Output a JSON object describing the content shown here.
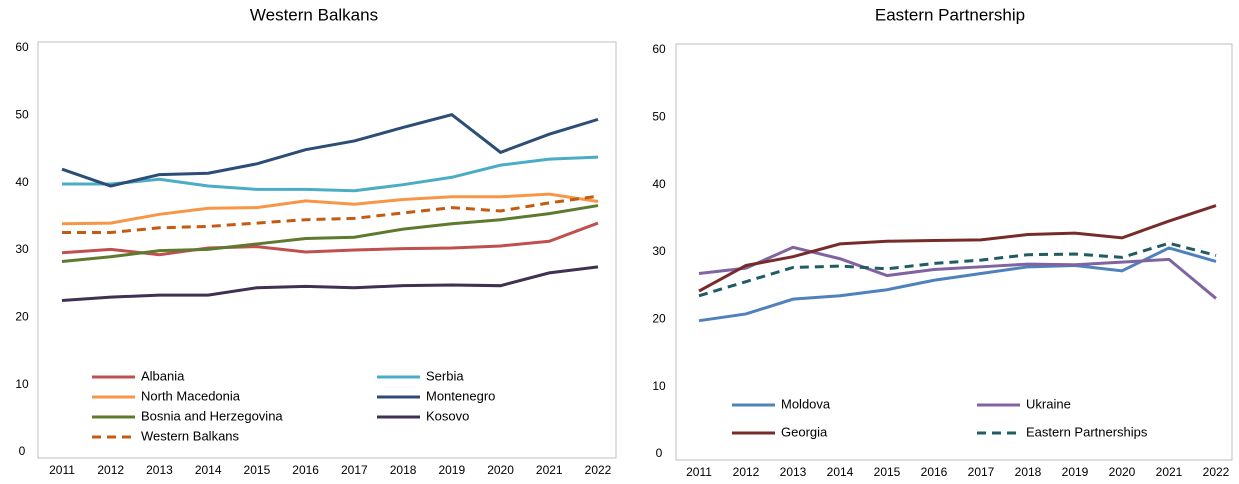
{
  "chart_data": [
    {
      "type": "line",
      "title": "Western Balkans",
      "x": [
        "2011",
        "2012",
        "2013",
        "2014",
        "2015",
        "2016",
        "2017",
        "2018",
        "2019",
        "2020",
        "2021",
        "2022"
      ],
      "ylim": [
        0,
        60
      ],
      "yticks": [
        0,
        10,
        20,
        30,
        40,
        50,
        60
      ],
      "series": [
        {
          "name": "Albania",
          "color": "#c0504d",
          "values": [
            29.6,
            30.1,
            29.3,
            30.3,
            30.5,
            29.7,
            30.0,
            30.2,
            30.3,
            30.6,
            31.3,
            34.0
          ]
        },
        {
          "name": "Serbia",
          "color": "#4bacc6",
          "values": [
            39.8,
            39.8,
            40.5,
            39.5,
            39.0,
            39.0,
            38.8,
            39.7,
            40.8,
            42.6,
            43.5,
            43.8
          ]
        },
        {
          "name": "North Macedonia",
          "color": "#f79646",
          "values": [
            33.9,
            34.0,
            35.3,
            36.2,
            36.3,
            37.3,
            36.8,
            37.5,
            37.9,
            37.9,
            38.3,
            37.2
          ]
        },
        {
          "name": "Montenegro",
          "color": "#2c4d75",
          "values": [
            42.0,
            39.5,
            41.2,
            41.4,
            42.8,
            44.9,
            46.2,
            48.2,
            50.1,
            44.5,
            47.2,
            49.4
          ]
        },
        {
          "name": "Bosnia and Herzegovina",
          "color": "#5e7a2f",
          "values": [
            28.3,
            29.0,
            29.9,
            30.1,
            30.9,
            31.7,
            31.9,
            33.1,
            33.9,
            34.5,
            35.4,
            36.6
          ]
        },
        {
          "name": "Kosovo",
          "color": "#403152",
          "values": [
            22.5,
            23.0,
            23.3,
            23.3,
            24.4,
            24.6,
            24.4,
            24.7,
            24.8,
            24.7,
            26.6,
            27.5
          ]
        },
        {
          "name": "Western Balkans",
          "color": "#c55a11",
          "dashed": true,
          "values": [
            32.6,
            32.6,
            33.3,
            33.5,
            34.0,
            34.5,
            34.7,
            35.5,
            36.3,
            35.8,
            37.0,
            38.0
          ]
        }
      ]
    },
    {
      "type": "line",
      "title": "Eastern Partnership",
      "x": [
        "2011",
        "2012",
        "2013",
        "2014",
        "2015",
        "2016",
        "2017",
        "2018",
        "2019",
        "2020",
        "2021",
        "2022"
      ],
      "ylim": [
        0,
        60
      ],
      "yticks": [
        0,
        10,
        20,
        30,
        40,
        50,
        60
      ],
      "series": [
        {
          "name": "Moldova",
          "color": "#4f81bd",
          "values": [
            19.8,
            20.8,
            23.0,
            23.5,
            24.4,
            25.8,
            26.8,
            27.8,
            28.0,
            27.2,
            30.6,
            28.6
          ]
        },
        {
          "name": "Ukraine",
          "color": "#8064a2",
          "values": [
            26.8,
            27.6,
            30.7,
            29.0,
            26.5,
            27.4,
            27.8,
            28.2,
            28.1,
            28.5,
            28.9,
            23.1
          ]
        },
        {
          "name": "Georgia",
          "color": "#772c2a",
          "values": [
            24.2,
            28.0,
            29.3,
            31.2,
            31.6,
            31.7,
            31.8,
            32.6,
            32.8,
            32.1,
            34.6,
            36.9
          ]
        },
        {
          "name": "Eastern Partnerships",
          "color": "#215b63",
          "dashed": true,
          "values": [
            23.5,
            25.6,
            27.7,
            27.9,
            27.5,
            28.3,
            28.8,
            29.6,
            29.7,
            29.2,
            31.3,
            29.5
          ]
        }
      ]
    }
  ]
}
